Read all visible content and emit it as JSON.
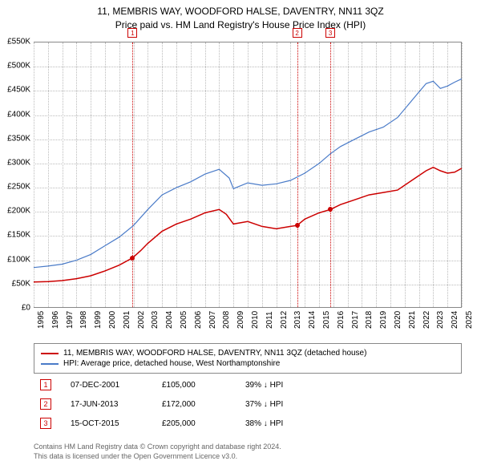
{
  "chart": {
    "type": "line",
    "title_line1": "11, MEMBRIS WAY, WOODFORD HALSE, DAVENTRY, NN11 3QZ",
    "title_line2": "Price paid vs. HM Land Registry's House Price Index (HPI)",
    "ylim": [
      0,
      550000
    ],
    "ytick_step": 50000,
    "y_ticks": [
      "£0",
      "£50K",
      "£100K",
      "£150K",
      "£200K",
      "£250K",
      "£300K",
      "£350K",
      "£400K",
      "£450K",
      "£500K",
      "£550K"
    ],
    "x_years": [
      "1995",
      "1996",
      "1997",
      "1998",
      "1999",
      "2000",
      "2001",
      "2002",
      "2003",
      "2004",
      "2005",
      "2006",
      "2007",
      "2008",
      "2009",
      "2010",
      "2011",
      "2012",
      "2013",
      "2014",
      "2015",
      "2016",
      "2017",
      "2018",
      "2019",
      "2020",
      "2021",
      "2022",
      "2023",
      "2024",
      "2025"
    ],
    "background_color": "#ffffff",
    "grid_color": "#bbbbbb",
    "border_color": "#888888",
    "series": [
      {
        "name": "property",
        "label": "11, MEMBRIS WAY, WOODFORD HALSE, DAVENTRY, NN11 3QZ (detached house)",
        "color": "#cc0000",
        "line_width": 1.5,
        "data": [
          [
            1995.0,
            55000
          ],
          [
            1996.0,
            56000
          ],
          [
            1997.0,
            58000
          ],
          [
            1998.0,
            62000
          ],
          [
            1999.0,
            68000
          ],
          [
            2000.0,
            78000
          ],
          [
            2001.0,
            90000
          ],
          [
            2001.93,
            105000
          ],
          [
            2002.5,
            120000
          ],
          [
            2003.0,
            135000
          ],
          [
            2004.0,
            160000
          ],
          [
            2005.0,
            175000
          ],
          [
            2006.0,
            185000
          ],
          [
            2007.0,
            198000
          ],
          [
            2008.0,
            205000
          ],
          [
            2008.5,
            195000
          ],
          [
            2009.0,
            175000
          ],
          [
            2010.0,
            180000
          ],
          [
            2011.0,
            170000
          ],
          [
            2012.0,
            165000
          ],
          [
            2013.0,
            170000
          ],
          [
            2013.46,
            172000
          ],
          [
            2014.0,
            185000
          ],
          [
            2015.0,
            198000
          ],
          [
            2015.79,
            205000
          ],
          [
            2016.5,
            215000
          ],
          [
            2017.5,
            225000
          ],
          [
            2018.5,
            235000
          ],
          [
            2019.5,
            240000
          ],
          [
            2020.5,
            245000
          ],
          [
            2021.5,
            265000
          ],
          [
            2022.5,
            285000
          ],
          [
            2023.0,
            292000
          ],
          [
            2023.5,
            285000
          ],
          [
            2024.0,
            280000
          ],
          [
            2024.5,
            282000
          ],
          [
            2025.0,
            290000
          ]
        ]
      },
      {
        "name": "hpi",
        "label": "HPI: Average price, detached house, West Northamptonshire",
        "color": "#4a7bc8",
        "line_width": 1.2,
        "data": [
          [
            1995.0,
            85000
          ],
          [
            1996.0,
            88000
          ],
          [
            1997.0,
            92000
          ],
          [
            1998.0,
            100000
          ],
          [
            1999.0,
            112000
          ],
          [
            2000.0,
            130000
          ],
          [
            2001.0,
            148000
          ],
          [
            2002.0,
            172000
          ],
          [
            2003.0,
            205000
          ],
          [
            2004.0,
            235000
          ],
          [
            2005.0,
            250000
          ],
          [
            2006.0,
            262000
          ],
          [
            2007.0,
            278000
          ],
          [
            2008.0,
            288000
          ],
          [
            2008.7,
            270000
          ],
          [
            2009.0,
            248000
          ],
          [
            2010.0,
            260000
          ],
          [
            2011.0,
            255000
          ],
          [
            2012.0,
            258000
          ],
          [
            2013.0,
            265000
          ],
          [
            2014.0,
            280000
          ],
          [
            2015.0,
            300000
          ],
          [
            2015.79,
            320000
          ],
          [
            2016.5,
            335000
          ],
          [
            2017.5,
            350000
          ],
          [
            2018.5,
            365000
          ],
          [
            2019.5,
            375000
          ],
          [
            2020.5,
            395000
          ],
          [
            2021.5,
            430000
          ],
          [
            2022.5,
            465000
          ],
          [
            2023.0,
            470000
          ],
          [
            2023.5,
            455000
          ],
          [
            2024.0,
            460000
          ],
          [
            2024.5,
            468000
          ],
          [
            2025.0,
            475000
          ]
        ]
      }
    ],
    "sale_markers": [
      {
        "num": "1",
        "year": 2001.93,
        "price": 105000
      },
      {
        "num": "2",
        "year": 2013.46,
        "price": 172000
      },
      {
        "num": "3",
        "year": 2015.79,
        "price": 205000
      }
    ]
  },
  "legend": {
    "items": [
      {
        "color": "#cc0000",
        "text": "11, MEMBRIS WAY, WOODFORD HALSE, DAVENTRY, NN11 3QZ (detached house)"
      },
      {
        "color": "#4a7bc8",
        "text": "HPI: Average price, detached house, West Northamptonshire"
      }
    ]
  },
  "markers_table": [
    {
      "num": "1",
      "date": "07-DEC-2001",
      "price": "£105,000",
      "hpi": "39% ↓ HPI"
    },
    {
      "num": "2",
      "date": "17-JUN-2013",
      "price": "£172,000",
      "hpi": "37% ↓ HPI"
    },
    {
      "num": "3",
      "date": "15-OCT-2015",
      "price": "£205,000",
      "hpi": "38% ↓ HPI"
    }
  ],
  "footnote": {
    "line1": "Contains HM Land Registry data © Crown copyright and database right 2024.",
    "line2": "This data is licensed under the Open Government Licence v3.0."
  }
}
